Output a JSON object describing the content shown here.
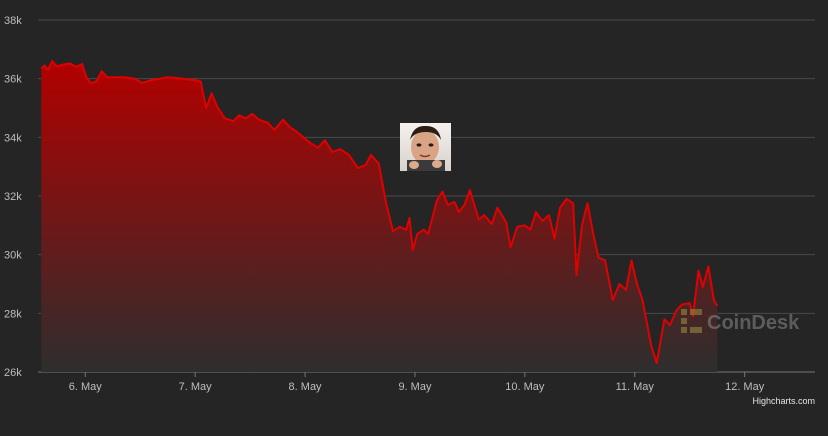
{
  "chart_data": {
    "type": "area",
    "title": "",
    "xlabel": "",
    "ylabel": "",
    "x_ticks": [
      "6. May",
      "7. May",
      "8. May",
      "9. May",
      "10. May",
      "11. May",
      "12. May"
    ],
    "y_ticks": [
      "26k",
      "28k",
      "30k",
      "32k",
      "34k",
      "36k",
      "38k"
    ],
    "ylim": [
      26000,
      38000
    ],
    "xlim_days": [
      5.57,
      12.64
    ],
    "grid": true,
    "series": [
      {
        "color_line": "#e00000",
        "color_fill_top": "#b30000",
        "color_fill_bottom": "#2e2e2e",
        "points": [
          [
            5.6,
            36350
          ],
          [
            5.63,
            36450
          ],
          [
            5.66,
            36300
          ],
          [
            5.7,
            36600
          ],
          [
            5.74,
            36420
          ],
          [
            5.8,
            36480
          ],
          [
            5.86,
            36520
          ],
          [
            5.92,
            36400
          ],
          [
            5.97,
            36500
          ],
          [
            6.01,
            36050
          ],
          [
            6.05,
            35850
          ],
          [
            6.1,
            35900
          ],
          [
            6.15,
            36250
          ],
          [
            6.2,
            36050
          ],
          [
            6.27,
            36050
          ],
          [
            6.35,
            36050
          ],
          [
            6.45,
            36000
          ],
          [
            6.52,
            35850
          ],
          [
            6.6,
            35950
          ],
          [
            6.68,
            36000
          ],
          [
            6.75,
            36050
          ],
          [
            6.85,
            36020
          ],
          [
            6.92,
            35980
          ],
          [
            7.0,
            35950
          ],
          [
            7.05,
            35900
          ],
          [
            7.1,
            35000
          ],
          [
            7.15,
            35500
          ],
          [
            7.2,
            35050
          ],
          [
            7.27,
            34650
          ],
          [
            7.35,
            34550
          ],
          [
            7.4,
            34750
          ],
          [
            7.46,
            34650
          ],
          [
            7.52,
            34800
          ],
          [
            7.58,
            34600
          ],
          [
            7.66,
            34500
          ],
          [
            7.72,
            34250
          ],
          [
            7.8,
            34600
          ],
          [
            7.86,
            34350
          ],
          [
            7.92,
            34200
          ],
          [
            8.0,
            33950
          ],
          [
            8.05,
            33800
          ],
          [
            8.12,
            33650
          ],
          [
            8.18,
            33900
          ],
          [
            8.25,
            33500
          ],
          [
            8.32,
            33600
          ],
          [
            8.4,
            33400
          ],
          [
            8.48,
            32950
          ],
          [
            8.55,
            33050
          ],
          [
            8.6,
            33400
          ],
          [
            8.67,
            33100
          ],
          [
            8.74,
            31700
          ],
          [
            8.8,
            30800
          ],
          [
            8.86,
            30950
          ],
          [
            8.92,
            30850
          ],
          [
            8.95,
            31250
          ],
          [
            8.98,
            30150
          ],
          [
            9.02,
            30700
          ],
          [
            9.08,
            30850
          ],
          [
            9.12,
            30700
          ],
          [
            9.2,
            31850
          ],
          [
            9.25,
            32150
          ],
          [
            9.3,
            31700
          ],
          [
            9.36,
            31800
          ],
          [
            9.4,
            31450
          ],
          [
            9.45,
            31700
          ],
          [
            9.5,
            32200
          ],
          [
            9.58,
            31200
          ],
          [
            9.63,
            31350
          ],
          [
            9.7,
            31050
          ],
          [
            9.75,
            31600
          ],
          [
            9.83,
            31100
          ],
          [
            9.87,
            30250
          ],
          [
            9.93,
            30950
          ],
          [
            10.0,
            31000
          ],
          [
            10.05,
            30850
          ],
          [
            10.1,
            31450
          ],
          [
            10.16,
            31150
          ],
          [
            10.22,
            31350
          ],
          [
            10.27,
            30550
          ],
          [
            10.32,
            31600
          ],
          [
            10.38,
            31900
          ],
          [
            10.44,
            31750
          ],
          [
            10.47,
            29300
          ],
          [
            10.52,
            31000
          ],
          [
            10.57,
            31750
          ],
          [
            10.62,
            30750
          ],
          [
            10.67,
            29900
          ],
          [
            10.73,
            29800
          ],
          [
            10.8,
            28450
          ],
          [
            10.86,
            29000
          ],
          [
            10.92,
            28800
          ],
          [
            10.97,
            29800
          ],
          [
            11.02,
            29000
          ],
          [
            11.07,
            28450
          ],
          [
            11.15,
            26900
          ],
          [
            11.2,
            26300
          ],
          [
            11.27,
            27800
          ],
          [
            11.32,
            27600
          ],
          [
            11.38,
            28100
          ],
          [
            11.43,
            28300
          ],
          [
            11.5,
            28350
          ],
          [
            11.53,
            27900
          ],
          [
            11.58,
            29450
          ],
          [
            11.62,
            28900
          ],
          [
            11.67,
            29600
          ],
          [
            11.72,
            28450
          ],
          [
            11.75,
            28250
          ]
        ]
      }
    ]
  },
  "overlay": {
    "photo_icon": "face-photo",
    "watermark_icon": "coindesk-logo-icon",
    "watermark_text": "CoinDesk"
  },
  "credits": "Highcharts.com"
}
